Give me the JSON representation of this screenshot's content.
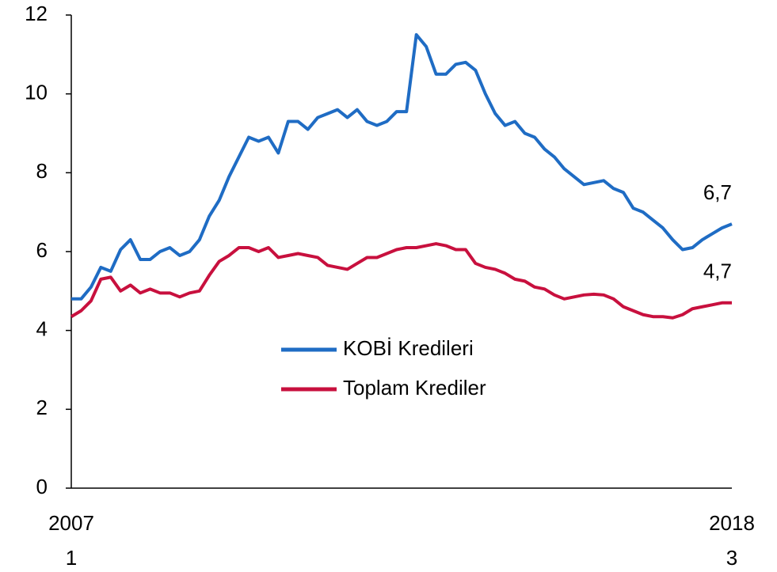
{
  "chart_data": {
    "type": "line",
    "categories": [
      [
        "2007",
        "1"
      ],
      null,
      null,
      null,
      null,
      null,
      null,
      null,
      null,
      null,
      null,
      null,
      null,
      null,
      null,
      null,
      null,
      null,
      null,
      null,
      null,
      null,
      null,
      null,
      null,
      null,
      null,
      null,
      null,
      null,
      null,
      null,
      null,
      null,
      null,
      null,
      null,
      null,
      null,
      null,
      null,
      null,
      null,
      null,
      null,
      null,
      null,
      null,
      null,
      null,
      null,
      null,
      null,
      null,
      null,
      null,
      null,
      null,
      null,
      null,
      null,
      null,
      null,
      null,
      null,
      null,
      null,
      [
        "2018",
        "3"
      ]
    ],
    "series": [
      {
        "name": "KOBİ Kredileri",
        "color": "#1f6cc4",
        "values": [
          4.8,
          4.8,
          5.1,
          5.6,
          5.5,
          6.05,
          6.3,
          5.8,
          5.8,
          6.0,
          6.1,
          5.9,
          6.0,
          6.3,
          6.9,
          7.3,
          7.9,
          8.4,
          8.9,
          8.8,
          8.9,
          8.5,
          9.3,
          9.3,
          9.1,
          9.4,
          9.5,
          9.6,
          9.4,
          9.6,
          9.3,
          9.2,
          9.3,
          9.55,
          9.55,
          11.5,
          11.2,
          10.5,
          10.5,
          10.75,
          10.8,
          10.6,
          10.0,
          9.5,
          9.2,
          9.3,
          9.0,
          8.9,
          8.6,
          8.4,
          8.1,
          7.9,
          7.7,
          7.75,
          7.8,
          7.6,
          7.5,
          7.1,
          7.0,
          6.8,
          6.6,
          6.3,
          6.05,
          6.1,
          6.3,
          6.45,
          6.6,
          6.7
        ],
        "value_labels": [
          null,
          null,
          null,
          null,
          null,
          null,
          null,
          null,
          null,
          null,
          null,
          null,
          null,
          null,
          null,
          null,
          null,
          null,
          null,
          null,
          null,
          null,
          null,
          null,
          null,
          null,
          null,
          null,
          null,
          null,
          null,
          null,
          null,
          null,
          null,
          null,
          null,
          null,
          null,
          null,
          null,
          null,
          null,
          null,
          null,
          null,
          null,
          null,
          null,
          null,
          null,
          null,
          null,
          null,
          null,
          null,
          null,
          null,
          null,
          null,
          null,
          null,
          null,
          null,
          null,
          null,
          null,
          "6,7"
        ]
      },
      {
        "name": "Toplam Krediler",
        "color": "#c8103e",
        "values": [
          4.35,
          4.5,
          4.75,
          5.3,
          5.35,
          5.0,
          5.15,
          4.95,
          5.05,
          4.95,
          4.95,
          4.85,
          4.95,
          5.0,
          5.4,
          5.75,
          5.9,
          6.1,
          6.1,
          6.0,
          6.1,
          5.85,
          5.9,
          5.95,
          5.9,
          5.85,
          5.65,
          5.6,
          5.55,
          5.7,
          5.85,
          5.85,
          5.95,
          6.05,
          6.1,
          6.1,
          6.15,
          6.2,
          6.15,
          6.05,
          6.05,
          5.7,
          5.6,
          5.55,
          5.45,
          5.3,
          5.25,
          5.1,
          5.05,
          4.9,
          4.8,
          4.85,
          4.9,
          4.92,
          4.9,
          4.8,
          4.6,
          4.5,
          4.4,
          4.35,
          4.35,
          4.32,
          4.4,
          4.55,
          4.6,
          4.65,
          4.7,
          4.7
        ],
        "value_labels": [
          null,
          null,
          null,
          null,
          null,
          null,
          null,
          null,
          null,
          null,
          null,
          null,
          null,
          null,
          null,
          null,
          null,
          null,
          null,
          null,
          null,
          null,
          null,
          null,
          null,
          null,
          null,
          null,
          null,
          null,
          null,
          null,
          null,
          null,
          null,
          null,
          null,
          null,
          null,
          null,
          null,
          null,
          null,
          null,
          null,
          null,
          null,
          null,
          null,
          null,
          null,
          null,
          null,
          null,
          null,
          null,
          null,
          null,
          null,
          null,
          null,
          null,
          null,
          null,
          null,
          null,
          null,
          "4,7"
        ]
      }
    ],
    "ylim": [
      0,
      12
    ],
    "yticks": [
      0,
      2,
      4,
      6,
      8,
      10,
      12
    ],
    "grid": false
  }
}
